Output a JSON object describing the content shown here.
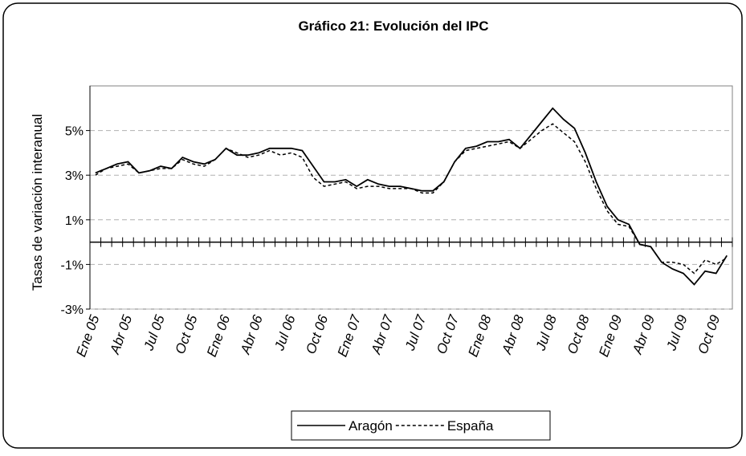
{
  "chart_data": {
    "type": "line",
    "title": "Gráfico 21: Evolución del IPC",
    "y_label": "Tasas de variación interanual",
    "categories": [
      "Ene 05",
      null,
      null,
      "Abr 05",
      null,
      null,
      "Jul 05",
      null,
      null,
      "Oct 05",
      null,
      null,
      "Ene 06",
      null,
      null,
      "Abr 06",
      null,
      null,
      "Jul 06",
      null,
      null,
      "Oct 06",
      null,
      null,
      "Ene 07",
      null,
      null,
      "Abr 07",
      null,
      null,
      "Jul 07",
      null,
      null,
      "Oct 07",
      null,
      null,
      "Ene 08",
      null,
      null,
      "Abr 08",
      null,
      null,
      "Jul 08",
      null,
      null,
      "Oct 08",
      null,
      null,
      "Ene 09",
      null,
      null,
      "Abr 09",
      null,
      null,
      "Jul 09",
      null,
      null,
      "Oct 09",
      null
    ],
    "series": [
      {
        "name": "Aragón",
        "color": "#000000",
        "dash": "solid",
        "values": [
          3.1,
          3.3,
          3.5,
          3.6,
          3.1,
          3.2,
          3.4,
          3.3,
          3.8,
          3.6,
          3.5,
          3.7,
          4.2,
          3.9,
          3.9,
          4.0,
          4.2,
          4.2,
          4.2,
          4.1,
          3.4,
          2.7,
          2.7,
          2.8,
          2.5,
          2.8,
          2.6,
          2.5,
          2.5,
          2.4,
          2.3,
          2.3,
          2.7,
          3.6,
          4.2,
          4.3,
          4.5,
          4.5,
          4.6,
          4.2,
          4.8,
          5.4,
          6.0,
          5.5,
          5.1,
          4.0,
          2.7,
          1.6,
          1.0,
          0.8,
          -0.1,
          -0.2,
          -0.9,
          -1.2,
          -1.4,
          -1.9,
          -1.3,
          -1.4,
          -0.6
        ]
      },
      {
        "name": "España",
        "color": "#000000",
        "dash": "dashed",
        "values": [
          3.0,
          3.3,
          3.4,
          3.5,
          3.1,
          3.2,
          3.3,
          3.3,
          3.7,
          3.5,
          3.4,
          3.7,
          4.2,
          4.0,
          3.8,
          3.9,
          4.1,
          3.9,
          4.0,
          3.8,
          2.9,
          2.5,
          2.6,
          2.7,
          2.4,
          2.5,
          2.5,
          2.4,
          2.4,
          2.4,
          2.2,
          2.2,
          2.7,
          3.6,
          4.1,
          4.2,
          4.3,
          4.4,
          4.5,
          4.2,
          4.6,
          5.0,
          5.3,
          4.9,
          4.5,
          3.6,
          2.4,
          1.4,
          0.8,
          0.7,
          -0.1,
          -0.2,
          -0.9,
          -0.9,
          -1.0,
          -1.4,
          -0.8,
          -1.0,
          -0.7
        ]
      }
    ],
    "ylim": [
      -3,
      7
    ],
    "yticks": [
      {
        "value": -3,
        "label": "-3%"
      },
      {
        "value": -1,
        "label": "-1%"
      },
      {
        "value": 1,
        "label": "1%"
      },
      {
        "value": 3,
        "label": "3%"
      },
      {
        "value": 5,
        "label": "5%"
      }
    ],
    "grid": true,
    "legend": "bottom"
  }
}
